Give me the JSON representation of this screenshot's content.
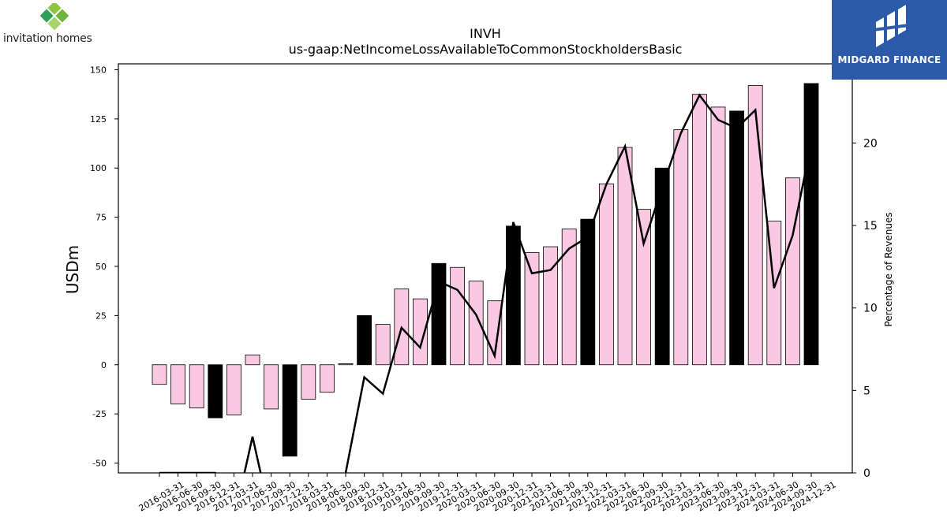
{
  "branding": {
    "company_logo_text": "invitation homes",
    "watermark_text": "MIDGARD FINANCE"
  },
  "chart_data": {
    "type": "bar",
    "title": "INVH",
    "subtitle": "us-gaap:NetIncomeLossAvailableToCommonStockholdersBasic",
    "ylabel": "USDm",
    "y2label": "Percentage of Revenues",
    "ylim": [
      -55,
      153
    ],
    "y2lim": [
      0,
      24.8
    ],
    "yticks": [
      -50,
      -25,
      0,
      25,
      50,
      75,
      100,
      125,
      150
    ],
    "y2ticks": [
      0,
      5,
      10,
      15,
      20
    ],
    "categories": [
      "2016-03-31",
      "2016-06-30",
      "2016-09-30",
      "2016-12-31",
      "2017-03-31",
      "2017-06-30",
      "2017-09-30",
      "2017-12-31",
      "2018-03-31",
      "2018-06-30",
      "2018-09-30",
      "2018-12-31",
      "2019-03-31",
      "2019-06-30",
      "2019-09-30",
      "2019-12-31",
      "2020-03-31",
      "2020-06-30",
      "2020-09-30",
      "2020-12-31",
      "2021-03-31",
      "2021-06-30",
      "2021-09-30",
      "2021-12-31",
      "2022-03-31",
      "2022-06-30",
      "2022-09-30",
      "2022-12-31",
      "2023-03-31",
      "2023-06-30",
      "2023-09-30",
      "2023-12-31",
      "2024-03-31",
      "2024-06-30",
      "2024-09-30",
      "2024-12-31"
    ],
    "series": [
      {
        "values": [
          -10,
          -20,
          -22,
          -27,
          -25.5,
          5,
          -22.5,
          -46.5,
          -17.5,
          -14,
          0.5,
          25,
          20.5,
          38.5,
          33.5,
          51.5,
          49.5,
          42.5,
          32.5,
          70.5,
          57,
          60,
          69,
          74,
          92,
          110.5,
          79,
          100,
          119.5,
          137.5,
          131,
          129,
          142,
          73,
          95,
          143
        ]
      },
      {
        "type": "line",
        "axis": "right",
        "values": [
          0,
          0,
          0,
          0,
          null,
          2.2,
          null,
          null,
          null,
          null,
          0,
          5.8,
          4.8,
          8.8,
          7.6,
          11.6,
          11.1,
          9.6,
          7.1,
          15.2,
          12.1,
          12.3,
          13.6,
          14.3,
          17.5,
          19.8,
          13.9,
          17.3,
          20.6,
          22.9,
          21.4,
          20.9,
          22.0,
          11.2,
          14.4,
          20.0
        ]
      }
    ],
    "year_end_highlight": [
      false,
      false,
      false,
      true,
      false,
      false,
      false,
      true,
      false,
      false,
      false,
      true,
      false,
      false,
      false,
      true,
      false,
      false,
      false,
      true,
      false,
      false,
      false,
      true,
      false,
      false,
      false,
      true,
      false,
      false,
      false,
      true,
      false,
      false,
      false,
      true
    ],
    "colors": {
      "quarter_bar": "#f9c8e2",
      "year_end_bar": "#000000",
      "bar_edge": "#000000",
      "line": "#000000"
    },
    "grid": false,
    "legend": "none"
  }
}
